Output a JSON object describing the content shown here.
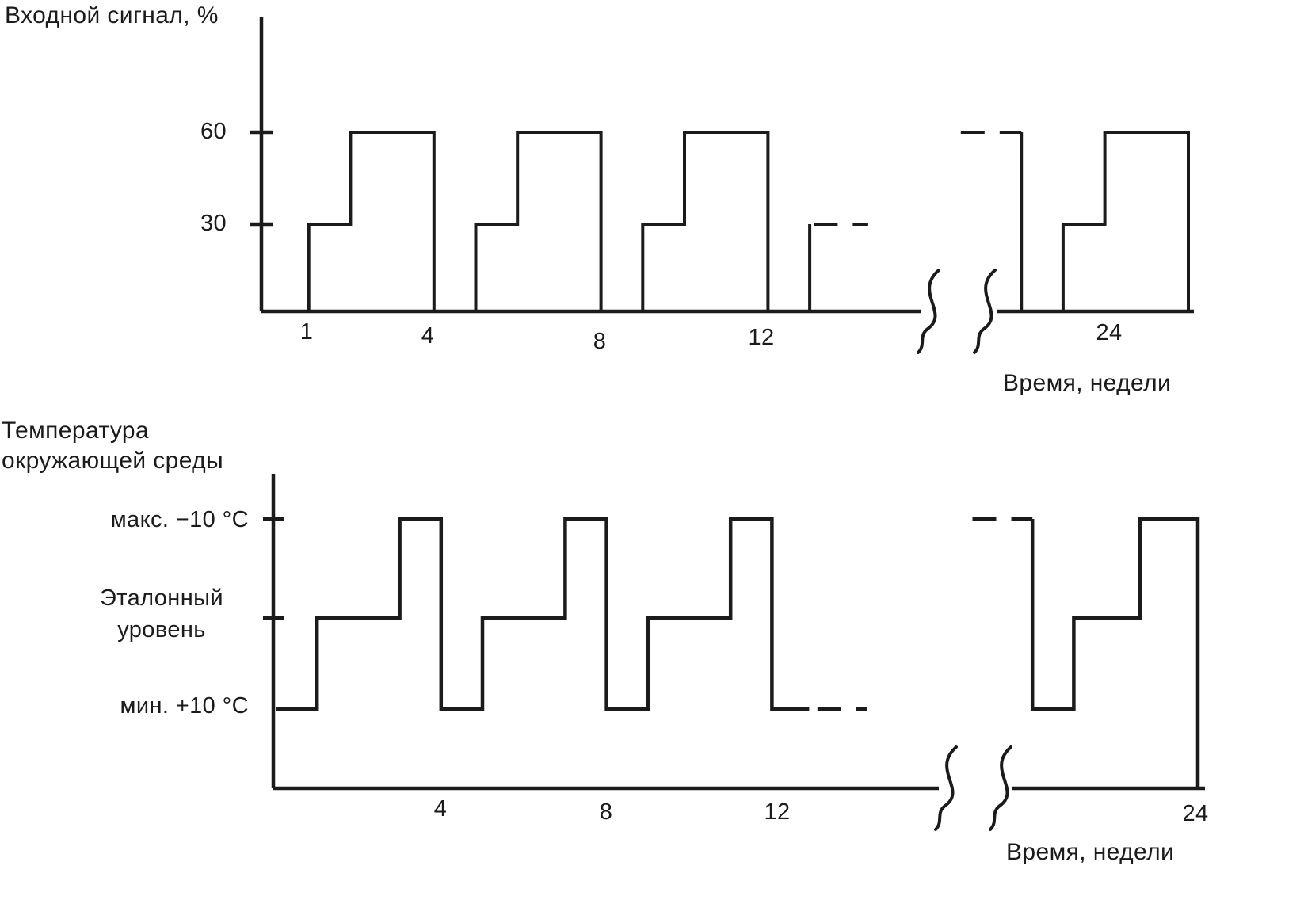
{
  "chart1": {
    "title": "Входной сигнал, %",
    "xlabel": "Время, недели",
    "ytick60": "60",
    "ytick30": "30",
    "xtick1": "1",
    "xtick4": "4",
    "xtick8": "8",
    "xtick12": "12",
    "xtick24": "24"
  },
  "chart2": {
    "title_line1": "Температура",
    "title_line2": "окружающей среды",
    "xlabel": "Время, недели",
    "label_max": "макс. −10 °C",
    "label_ref_line1": "Эталонный",
    "label_ref_line2": "уровень",
    "label_min": "мин. +10 °C",
    "xtick4": "4",
    "xtick8": "8",
    "xtick12": "12",
    "xtick24": "24"
  },
  "chart_data": [
    {
      "type": "line",
      "subtype": "step-pulse-train",
      "title": "Входной сигнал, %",
      "xlabel": "Время, недели",
      "units": {
        "x": "недели",
        "y": "%"
      },
      "xlim": [
        0,
        24
      ],
      "ylim": [
        0,
        75
      ],
      "x_ticks": [
        1,
        4,
        8,
        12,
        24
      ],
      "y_ticks": [
        30,
        60
      ],
      "axis_break_x_weeks": [
        14.5,
        19.5
      ],
      "legend": "none",
      "grid": false,
      "solid_steps": [
        [
          [
            1,
            0
          ],
          [
            1,
            30
          ],
          [
            2,
            30
          ],
          [
            2,
            60
          ],
          [
            4,
            60
          ],
          [
            4,
            0
          ]
        ],
        [
          [
            5,
            0
          ],
          [
            5,
            30
          ],
          [
            6,
            30
          ],
          [
            6,
            60
          ],
          [
            8,
            60
          ],
          [
            8,
            0
          ]
        ],
        [
          [
            9,
            0
          ],
          [
            9,
            30
          ],
          [
            10,
            30
          ],
          [
            10,
            60
          ],
          [
            12,
            60
          ],
          [
            12,
            0
          ]
        ],
        [
          [
            13,
            0
          ],
          [
            13,
            30
          ]
        ],
        [
          [
            20,
            60
          ],
          [
            20,
            0
          ]
        ],
        [
          [
            21,
            0
          ],
          [
            21,
            30
          ],
          [
            22,
            30
          ],
          [
            22,
            60
          ],
          [
            24,
            60
          ],
          [
            24,
            0
          ]
        ]
      ],
      "dashed_steps": [
        [
          [
            13.1,
            30
          ],
          [
            14.4,
            30
          ]
        ],
        [
          [
            18.55,
            60
          ],
          [
            20,
            60
          ]
        ]
      ]
    },
    {
      "type": "line",
      "subtype": "step-cycle",
      "title": "Температура окружающей среды",
      "xlabel": "Время, недели",
      "units": {
        "x": "недели"
      },
      "xlim": [
        0,
        24
      ],
      "x_ticks": [
        4,
        8,
        12,
        24
      ],
      "y_levels_order": [
        "min",
        "ref",
        "max"
      ],
      "levels": {
        "max": "макс. −10 °C",
        "ref": "Эталонный уровень",
        "min": "мин. +10 °C"
      },
      "axis_break_x_weeks": [
        14.5,
        19.5
      ],
      "legend": "none",
      "grid": false,
      "solid_steps": [
        [
          [
            0,
            "min"
          ],
          [
            1,
            "min"
          ],
          [
            1,
            "ref"
          ],
          [
            3,
            "ref"
          ],
          [
            3,
            "max"
          ],
          [
            4,
            "max"
          ],
          [
            4,
            "min"
          ],
          [
            5,
            "min"
          ],
          [
            5,
            "ref"
          ],
          [
            7,
            "ref"
          ],
          [
            7,
            "max"
          ],
          [
            8,
            "max"
          ],
          [
            8,
            "min"
          ],
          [
            9,
            "min"
          ],
          [
            9,
            "ref"
          ],
          [
            11,
            "ref"
          ],
          [
            11,
            "max"
          ],
          [
            12,
            "max"
          ],
          [
            12,
            "min"
          ],
          [
            12.9,
            "min"
          ]
        ],
        [
          [
            20,
            "max"
          ],
          [
            20,
            "min"
          ],
          [
            21,
            "min"
          ],
          [
            21,
            "ref"
          ],
          [
            22.6,
            "ref"
          ],
          [
            22.6,
            "max"
          ],
          [
            24,
            "max"
          ],
          [
            24,
            "base"
          ]
        ]
      ],
      "dashed_steps": [
        [
          [
            13.1,
            "min"
          ],
          [
            14.3,
            "min"
          ]
        ],
        [
          [
            18.55,
            "max"
          ],
          [
            20,
            "max"
          ]
        ]
      ]
    }
  ]
}
